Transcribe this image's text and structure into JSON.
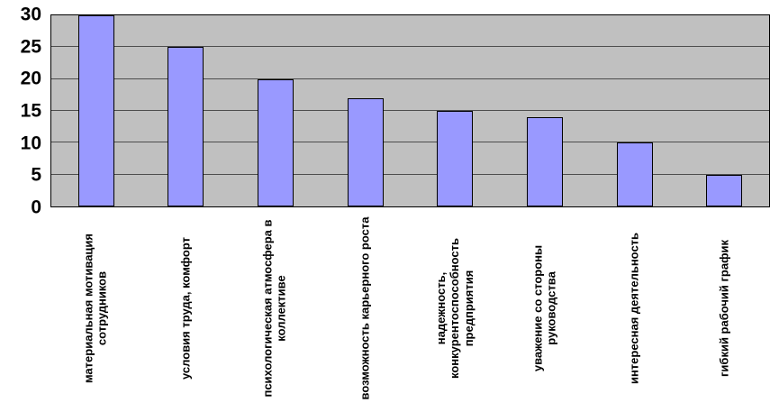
{
  "chart_data": {
    "type": "bar",
    "categories": [
      "материальная мотивация сотрудников",
      "условия труда, комфорт",
      "психологическая атмосфера в коллективе",
      "возможность карьерного роста",
      "надежность, конкурентоспособность предприятия",
      "уважение со стороны руководства",
      "интересная деятельность",
      "гибкий рабочий график"
    ],
    "values": [
      30,
      25,
      20,
      17,
      15,
      14,
      10,
      5
    ],
    "title": "",
    "xlabel": "",
    "ylabel": "",
    "ylim": [
      0,
      30
    ],
    "yticks": [
      0,
      5,
      10,
      15,
      20,
      25,
      30
    ],
    "grid": true,
    "legend_position": "none",
    "bar_color": "#9999ff",
    "bar_border_color": "#000000",
    "plot_bg": "#c0c0c0",
    "axis_color": "#000000"
  }
}
